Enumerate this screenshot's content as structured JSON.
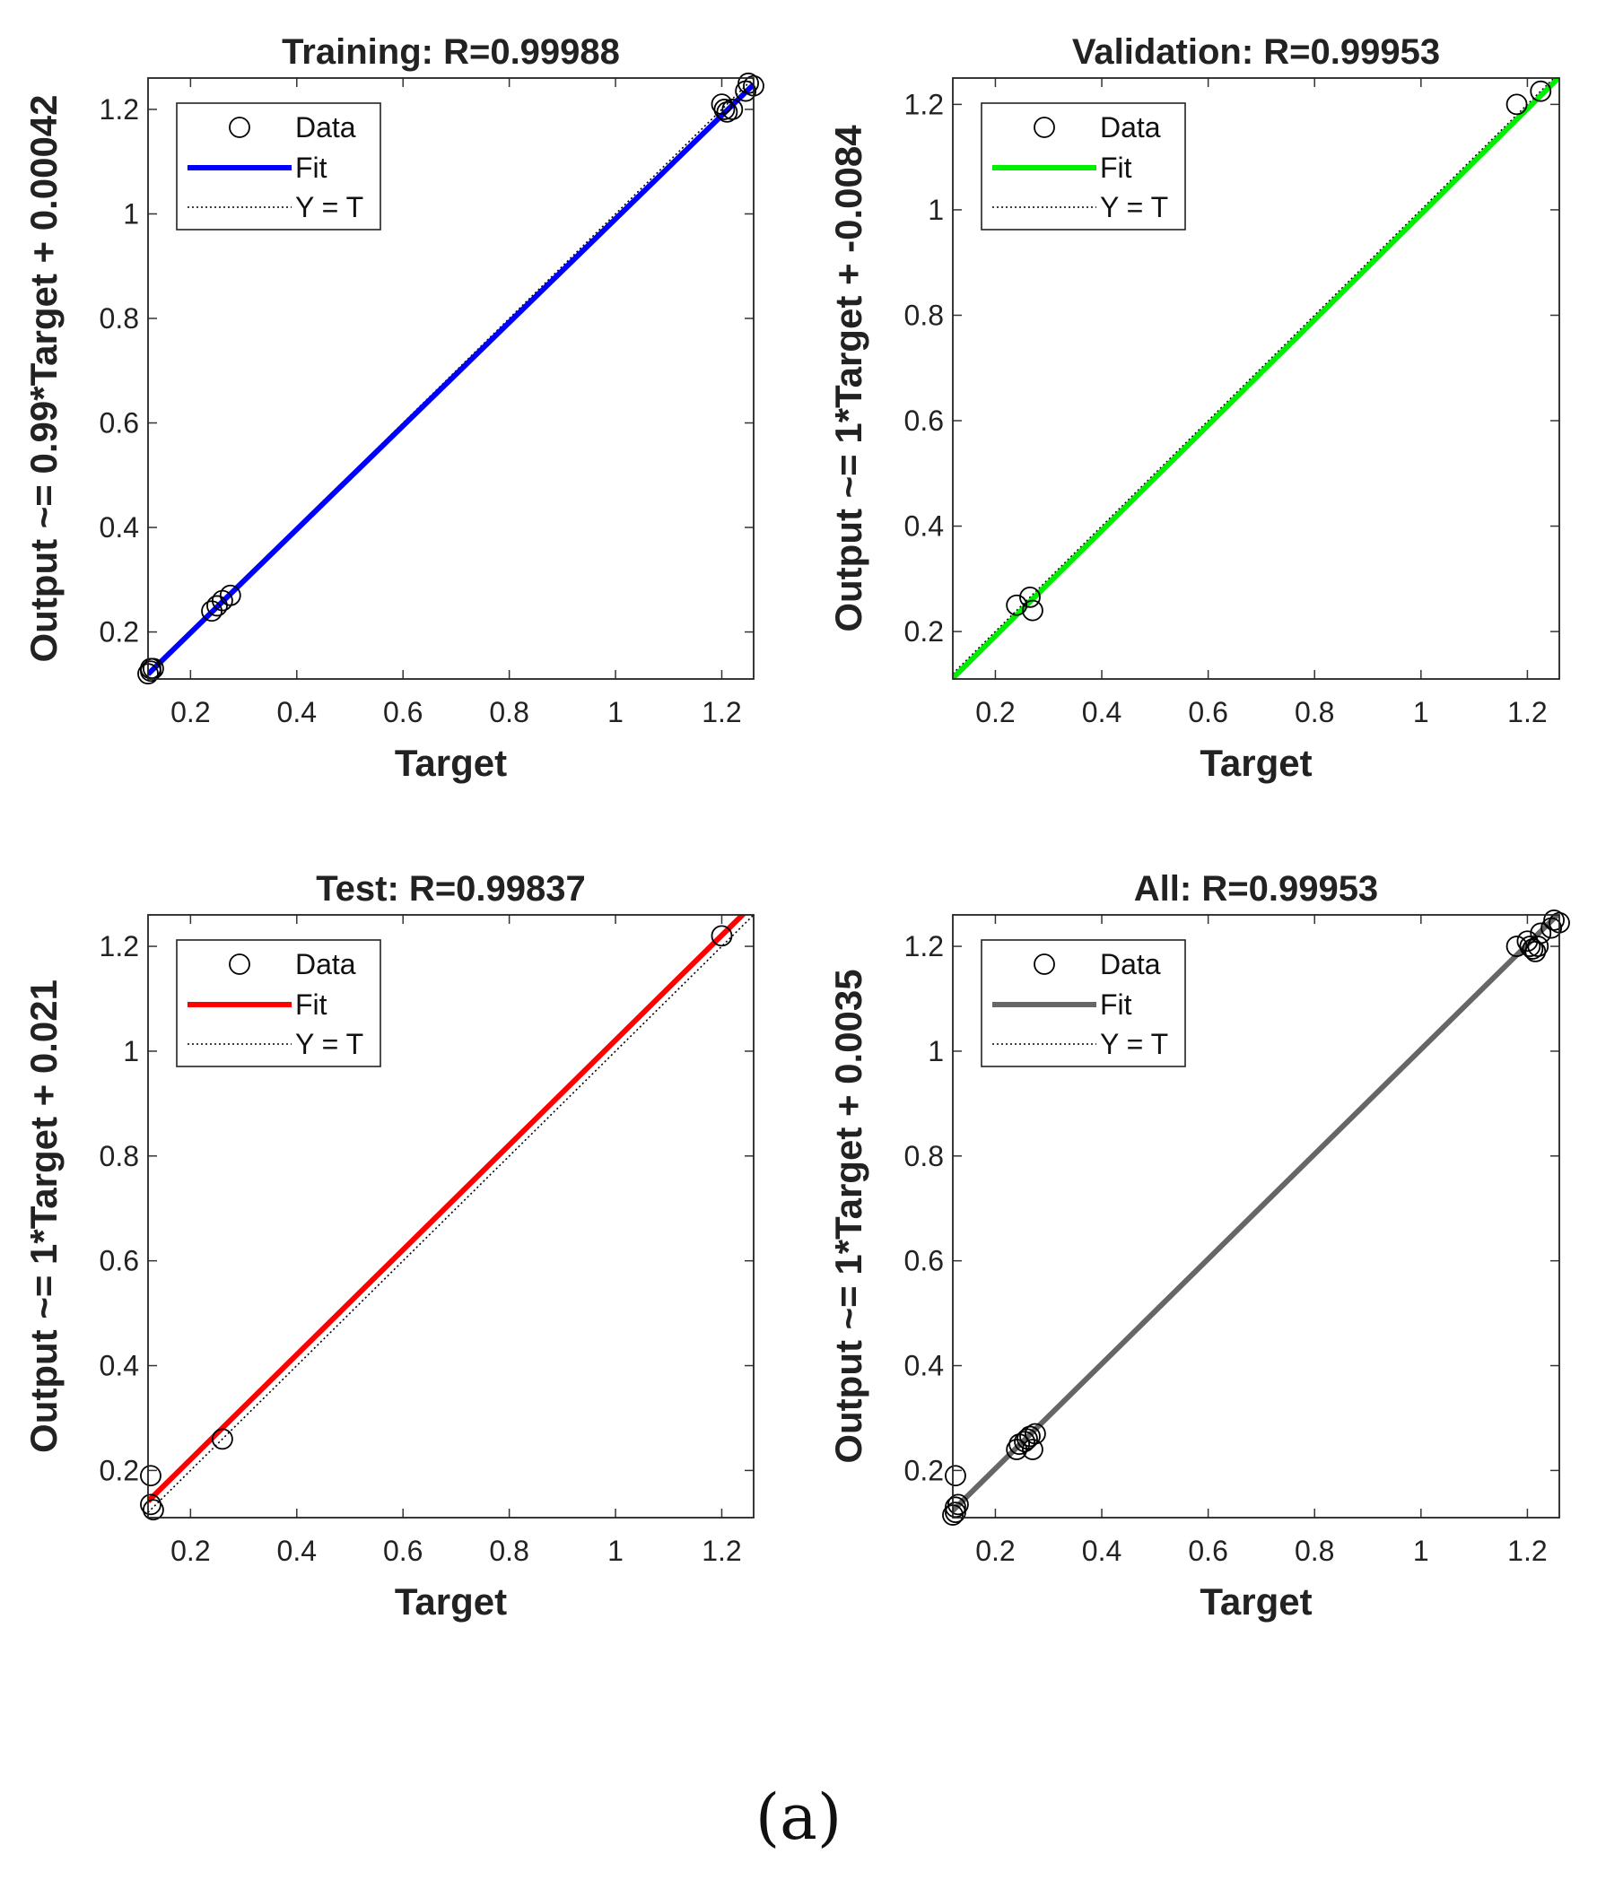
{
  "figure": {
    "caption": "(a)"
  },
  "chart_data": [
    {
      "type": "scatter",
      "title": "Training: R=0.99988",
      "xlabel": "Target",
      "ylabel": "Output ~= 0.99*Target + 0.00042",
      "xlim": [
        0.12,
        1.26
      ],
      "ylim": [
        0.11,
        1.26
      ],
      "xticks": [
        "0.2",
        "0.4",
        "0.6",
        "0.8",
        "1",
        "1.2"
      ],
      "yticks": [
        "0.2",
        "0.4",
        "0.6",
        "0.8",
        "1",
        "1.2"
      ],
      "legend": {
        "placement": "top-left",
        "entries": [
          "Data",
          "Fit",
          "Y = T"
        ]
      },
      "fit": {
        "slope": 0.99,
        "intercept": 0.00042,
        "color": "#0000ff"
      },
      "points": [
        [
          0.12,
          0.12
        ],
        [
          0.125,
          0.125
        ],
        [
          0.13,
          0.13
        ],
        [
          0.125,
          0.13
        ],
        [
          0.24,
          0.24
        ],
        [
          0.25,
          0.25
        ],
        [
          0.26,
          0.26
        ],
        [
          0.275,
          0.27
        ],
        [
          1.2,
          1.21
        ],
        [
          1.205,
          1.2
        ],
        [
          1.21,
          1.195
        ],
        [
          1.22,
          1.2
        ],
        [
          1.25,
          1.25
        ],
        [
          1.26,
          1.245
        ],
        [
          1.245,
          1.235
        ]
      ]
    },
    {
      "type": "scatter",
      "title": "Validation: R=0.99953",
      "xlabel": "Target",
      "ylabel": "Output ~= 1*Target + -0.0084",
      "xlim": [
        0.12,
        1.26
      ],
      "ylim": [
        0.11,
        1.25
      ],
      "xticks": [
        "0.2",
        "0.4",
        "0.6",
        "0.8",
        "1",
        "1.2"
      ],
      "yticks": [
        "0.2",
        "0.4",
        "0.6",
        "0.8",
        "1",
        "1.2"
      ],
      "legend": {
        "placement": "top-left",
        "entries": [
          "Data",
          "Fit",
          "Y = T"
        ]
      },
      "fit": {
        "slope": 1,
        "intercept": -0.0084,
        "color": "#00ee00"
      },
      "points": [
        [
          0.24,
          0.25
        ],
        [
          0.265,
          0.265
        ],
        [
          0.27,
          0.24
        ],
        [
          1.18,
          1.2
        ],
        [
          1.225,
          1.225
        ]
      ]
    },
    {
      "type": "scatter",
      "title": "Test: R=0.99837",
      "xlabel": "Target",
      "ylabel": "Output ~= 1*Target + 0.021",
      "xlim": [
        0.12,
        1.26
      ],
      "ylim": [
        0.11,
        1.26
      ],
      "xticks": [
        "0.2",
        "0.4",
        "0.6",
        "0.8",
        "1",
        "1.2"
      ],
      "yticks": [
        "0.2",
        "0.4",
        "0.6",
        "0.8",
        "1",
        "1.2"
      ],
      "legend": {
        "placement": "top-left",
        "entries": [
          "Data",
          "Fit",
          "Y = T"
        ]
      },
      "fit": {
        "slope": 1,
        "intercept": 0.021,
        "color": "#ff0000"
      },
      "points": [
        [
          0.125,
          0.19
        ],
        [
          0.125,
          0.135
        ],
        [
          0.13,
          0.125
        ],
        [
          0.26,
          0.26
        ],
        [
          1.2,
          1.22
        ]
      ]
    },
    {
      "type": "scatter",
      "title": "All: R=0.99953",
      "xlabel": "Target",
      "ylabel": "Output ~= 1*Target + 0.0035",
      "xlim": [
        0.12,
        1.26
      ],
      "ylim": [
        0.11,
        1.26
      ],
      "xticks": [
        "0.2",
        "0.4",
        "0.6",
        "0.8",
        "1",
        "1.2"
      ],
      "yticks": [
        "0.2",
        "0.4",
        "0.6",
        "0.8",
        "1",
        "1.2"
      ],
      "legend": {
        "placement": "top-left",
        "entries": [
          "Data",
          "Fit",
          "Y = T"
        ]
      },
      "fit": {
        "slope": 1,
        "intercept": 0.0035,
        "color": "#666666"
      },
      "points": [
        [
          0.12,
          0.115
        ],
        [
          0.125,
          0.12
        ],
        [
          0.125,
          0.13
        ],
        [
          0.13,
          0.135
        ],
        [
          0.125,
          0.19
        ],
        [
          0.24,
          0.24
        ],
        [
          0.245,
          0.25
        ],
        [
          0.255,
          0.255
        ],
        [
          0.26,
          0.26
        ],
        [
          0.265,
          0.265
        ],
        [
          0.27,
          0.24
        ],
        [
          0.275,
          0.27
        ],
        [
          1.18,
          1.2
        ],
        [
          1.2,
          1.21
        ],
        [
          1.205,
          1.2
        ],
        [
          1.21,
          1.195
        ],
        [
          1.215,
          1.19
        ],
        [
          1.22,
          1.2
        ],
        [
          1.225,
          1.225
        ],
        [
          1.245,
          1.235
        ],
        [
          1.25,
          1.25
        ],
        [
          1.26,
          1.245
        ]
      ]
    }
  ]
}
